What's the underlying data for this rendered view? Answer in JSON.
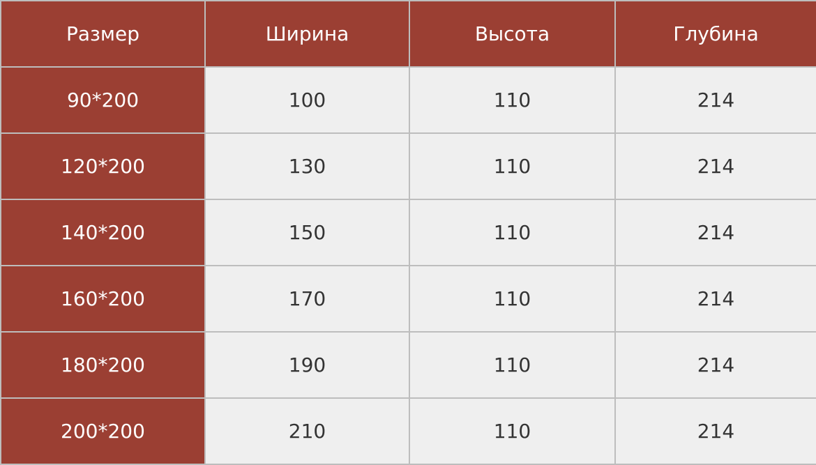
{
  "headers": [
    "Размер",
    "Ширина",
    "Высота",
    "Глубина"
  ],
  "rows": [
    [
      "90*200",
      "100",
      "110",
      "214"
    ],
    [
      "120*200",
      "130",
      "110",
      "214"
    ],
    [
      "140*200",
      "150",
      "110",
      "214"
    ],
    [
      "160*200",
      "170",
      "110",
      "214"
    ],
    [
      "180*200",
      "190",
      "110",
      "214"
    ],
    [
      "200*200",
      "210",
      "110",
      "214"
    ]
  ],
  "colors": {
    "accent": "#9b3f33",
    "cell_bg": "#efefef",
    "border": "#bdbdbd"
  }
}
